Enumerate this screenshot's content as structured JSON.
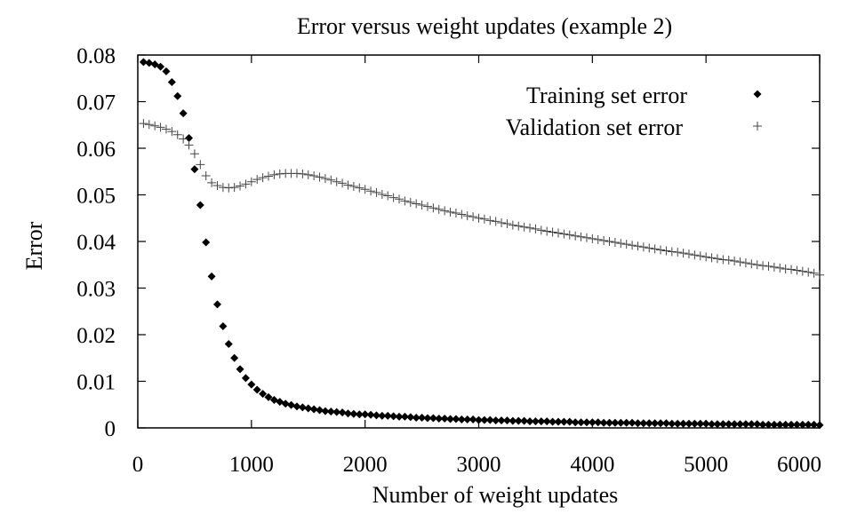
{
  "chart_data": {
    "type": "scatter",
    "title": "Error versus weight updates (example 2)",
    "xlabel": "Number of weight updates",
    "ylabel": "Error",
    "xlim": [
      0,
      6000
    ],
    "ylim": [
      0,
      0.08
    ],
    "xticks": [
      0,
      1000,
      2000,
      3000,
      4000,
      5000,
      6000
    ],
    "xtick_labels": [
      "0",
      "1000",
      "2000",
      "3000",
      "4000",
      "5000",
      "6000"
    ],
    "yticks": [
      0,
      0.01,
      0.02,
      0.03,
      0.04,
      0.05,
      0.06,
      0.07,
      0.08
    ],
    "ytick_labels": [
      "0",
      "0.01",
      "0.02",
      "0.03",
      "0.04",
      "0.05",
      "0.06",
      "0.07",
      "0.08"
    ],
    "grid": false,
    "legend_position": "top-right",
    "series": [
      {
        "name": "Training set error",
        "marker": "diamond",
        "color": "#000000",
        "x": [
          50,
          100,
          150,
          200,
          250,
          300,
          350,
          400,
          450,
          500,
          550,
          600,
          650,
          700,
          750,
          800,
          850,
          900,
          950,
          1000,
          1050,
          1100,
          1150,
          1200,
          1250,
          1300,
          1350,
          1400,
          1450,
          1500,
          1550,
          1600,
          1650,
          1700,
          1750,
          1800,
          1850,
          1900,
          1950,
          2000,
          2050,
          2100,
          2150,
          2200,
          2250,
          2300,
          2350,
          2400,
          2450,
          2500,
          2550,
          2600,
          2650,
          2700,
          2750,
          2800,
          2850,
          2900,
          2950,
          3000,
          3050,
          3100,
          3150,
          3200,
          3250,
          3300,
          3350,
          3400,
          3450,
          3500,
          3550,
          3600,
          3650,
          3700,
          3750,
          3800,
          3850,
          3900,
          3950,
          4000,
          4050,
          4100,
          4150,
          4200,
          4250,
          4300,
          4350,
          4400,
          4450,
          4500,
          4550,
          4600,
          4650,
          4700,
          4750,
          4800,
          4850,
          4900,
          4950,
          5000,
          5050,
          5100,
          5150,
          5200,
          5250,
          5300,
          5350,
          5400,
          5450,
          5500,
          5550,
          5600,
          5650,
          5700,
          5750,
          5800,
          5850,
          5900,
          5950,
          6000
        ],
        "y": [
          0.0785,
          0.0783,
          0.078,
          0.0775,
          0.0765,
          0.0742,
          0.0712,
          0.0675,
          0.0622,
          0.0555,
          0.0478,
          0.0398,
          0.0325,
          0.0265,
          0.0218,
          0.018,
          0.015,
          0.0126,
          0.0107,
          0.0093,
          0.0082,
          0.0073,
          0.0066,
          0.006,
          0.0056,
          0.0052,
          0.0049,
          0.0046,
          0.0044,
          0.0042,
          0.004,
          0.0038,
          0.0036,
          0.0035,
          0.0034,
          0.0033,
          0.0031,
          0.003,
          0.0029,
          0.0029,
          0.0028,
          0.0027,
          0.0026,
          0.0026,
          0.0025,
          0.0024,
          0.0024,
          0.0023,
          0.0022,
          0.0022,
          0.0021,
          0.0021,
          0.002,
          0.002,
          0.0019,
          0.0019,
          0.0018,
          0.0018,
          0.0018,
          0.0017,
          0.0017,
          0.0017,
          0.0016,
          0.0016,
          0.0016,
          0.0015,
          0.0015,
          0.0015,
          0.0014,
          0.0014,
          0.0014,
          0.0014,
          0.0013,
          0.0013,
          0.0013,
          0.0013,
          0.0012,
          0.0012,
          0.0012,
          0.0012,
          0.0012,
          0.0011,
          0.0011,
          0.0011,
          0.0011,
          0.0011,
          0.0011,
          0.001,
          0.001,
          0.001,
          0.001,
          0.001,
          0.001,
          0.0009,
          0.0009,
          0.0009,
          0.0009,
          0.0009,
          0.0009,
          0.0009,
          0.0008,
          0.0008,
          0.0008,
          0.0008,
          0.0008,
          0.0008,
          0.0008,
          0.0008,
          0.0008,
          0.0007,
          0.0007,
          0.0007,
          0.0007,
          0.0007,
          0.0007,
          0.0007,
          0.0007,
          0.0007,
          0.0007,
          0.0006
        ]
      },
      {
        "name": "Validation set error",
        "marker": "plus",
        "color": "#444444",
        "x": [
          50,
          100,
          150,
          200,
          250,
          300,
          350,
          400,
          450,
          500,
          550,
          600,
          650,
          700,
          750,
          800,
          850,
          900,
          950,
          1000,
          1050,
          1100,
          1150,
          1200,
          1250,
          1300,
          1350,
          1400,
          1450,
          1500,
          1550,
          1600,
          1650,
          1700,
          1750,
          1800,
          1850,
          1900,
          1950,
          2000,
          2050,
          2100,
          2150,
          2200,
          2250,
          2300,
          2350,
          2400,
          2450,
          2500,
          2550,
          2600,
          2650,
          2700,
          2750,
          2800,
          2850,
          2900,
          2950,
          3000,
          3050,
          3100,
          3150,
          3200,
          3250,
          3300,
          3350,
          3400,
          3450,
          3500,
          3550,
          3600,
          3650,
          3700,
          3750,
          3800,
          3850,
          3900,
          3950,
          4000,
          4050,
          4100,
          4150,
          4200,
          4250,
          4300,
          4350,
          4400,
          4450,
          4500,
          4550,
          4600,
          4650,
          4700,
          4750,
          4800,
          4850,
          4900,
          4950,
          5000,
          5050,
          5100,
          5150,
          5200,
          5250,
          5300,
          5350,
          5400,
          5450,
          5500,
          5550,
          5600,
          5650,
          5700,
          5750,
          5800,
          5850,
          5900,
          5950,
          6000
        ],
        "y": [
          0.0653,
          0.0651,
          0.0648,
          0.0645,
          0.0641,
          0.0636,
          0.0629,
          0.062,
          0.0607,
          0.0588,
          0.0565,
          0.0541,
          0.0526,
          0.052,
          0.0516,
          0.0515,
          0.0516,
          0.0519,
          0.0523,
          0.0528,
          0.0533,
          0.0537,
          0.054,
          0.0543,
          0.0545,
          0.0546,
          0.0546,
          0.0546,
          0.0545,
          0.0543,
          0.0541,
          0.0538,
          0.0535,
          0.0532,
          0.0528,
          0.0525,
          0.0521,
          0.0518,
          0.0515,
          0.0512,
          0.0508,
          0.0505,
          0.0501,
          0.0498,
          0.0494,
          0.0491,
          0.0487,
          0.0484,
          0.0481,
          0.0478,
          0.0475,
          0.0472,
          0.0469,
          0.0466,
          0.0463,
          0.0461,
          0.0458,
          0.0455,
          0.0453,
          0.045,
          0.0448,
          0.0445,
          0.0443,
          0.044,
          0.0438,
          0.0435,
          0.0433,
          0.0431,
          0.0429,
          0.0427,
          0.0424,
          0.0422,
          0.042,
          0.0418,
          0.0416,
          0.0414,
          0.0412,
          0.041,
          0.0408,
          0.0406,
          0.0404,
          0.0402,
          0.04,
          0.0398,
          0.0396,
          0.0394,
          0.0392,
          0.039,
          0.0388,
          0.0386,
          0.0384,
          0.0382,
          0.038,
          0.0378,
          0.0377,
          0.0375,
          0.0373,
          0.0371,
          0.0369,
          0.0367,
          0.0365,
          0.0363,
          0.0361,
          0.036,
          0.0358,
          0.0356,
          0.0354,
          0.0352,
          0.035,
          0.0348,
          0.0347,
          0.0345,
          0.0343,
          0.0341,
          0.034,
          0.0338,
          0.0336,
          0.0334,
          0.0332,
          0.0328
        ]
      }
    ]
  }
}
